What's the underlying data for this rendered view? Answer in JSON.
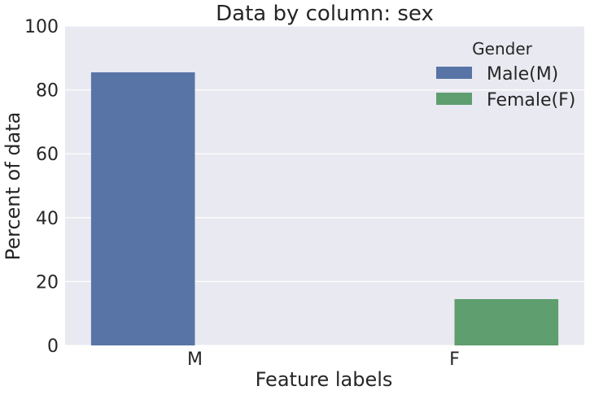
{
  "chart_data": {
    "type": "bar",
    "title": "Data by column: sex",
    "xlabel": "Feature labels",
    "ylabel": "Percent of data",
    "categories": [
      "M",
      "F"
    ],
    "ylim": [
      0,
      100
    ],
    "yticks": [
      0,
      20,
      40,
      60,
      80,
      100
    ],
    "grid": true,
    "legend": {
      "title": "Gender",
      "placement": "top-right"
    },
    "series": [
      {
        "name": "Male(M)",
        "color": "#5874a6",
        "values": [
          85.5,
          0
        ]
      },
      {
        "name": "Female(F)",
        "color": "#5f9e6e",
        "values": [
          0,
          14.5
        ]
      }
    ]
  }
}
